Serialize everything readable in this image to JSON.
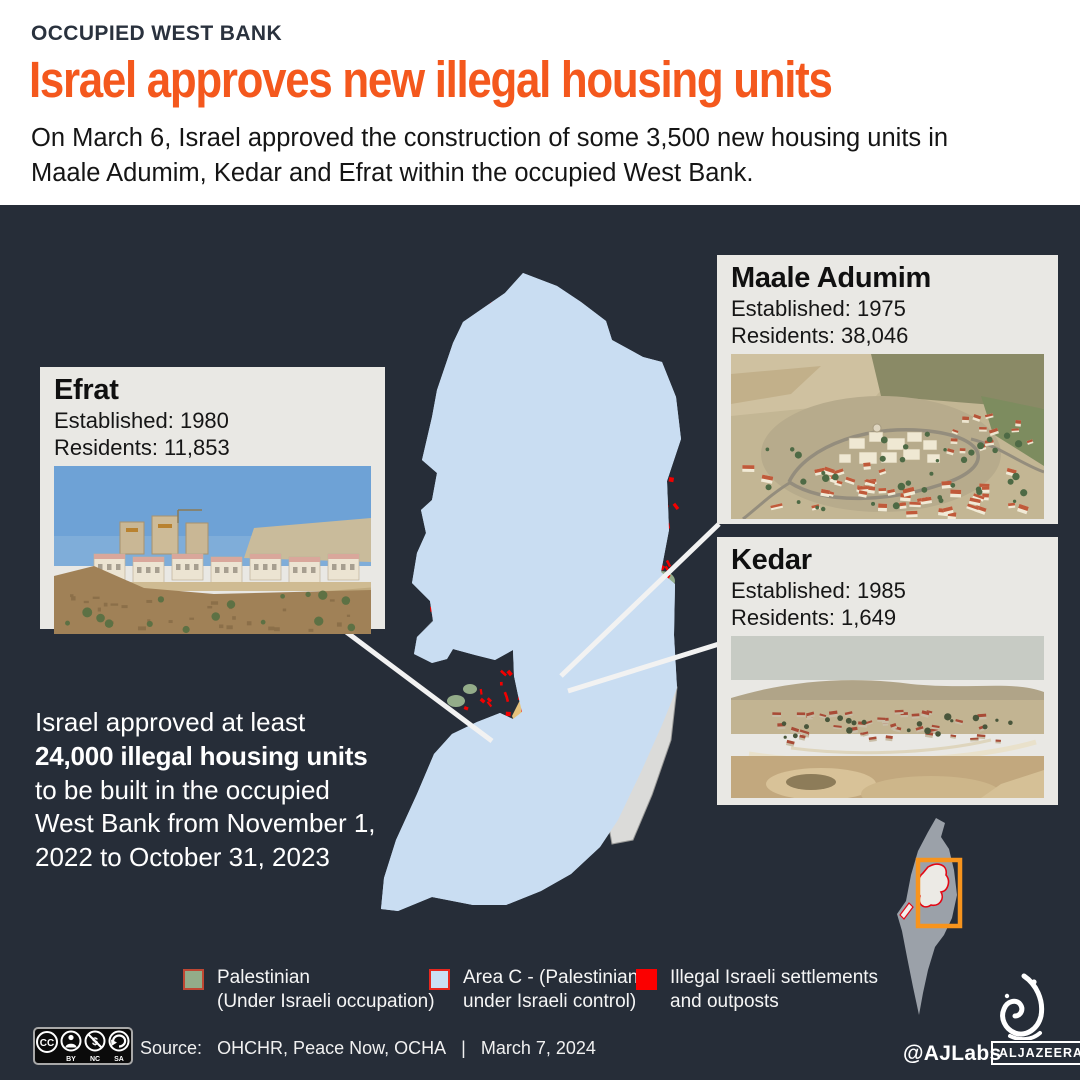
{
  "header": {
    "kicker": "OCCUPIED WEST BANK",
    "title": "Israel approves new illegal housing units",
    "subtitle_line1": "On March 6, Israel approved the construction of some 3,500 new housing units in",
    "subtitle_line2": "Maale Adumim, Kedar and Efrat within the occupied West Bank."
  },
  "settlements": {
    "efrat": {
      "name": "Efrat",
      "established": "Established: 1980",
      "residents": "Residents: 11,853"
    },
    "maale": {
      "name": "Maale Adumim",
      "established": "Established: 1975",
      "residents": "Residents: 38,046"
    },
    "kedar": {
      "name": "Kedar",
      "established": "Established: 1985",
      "residents": "Residents: 1,649"
    }
  },
  "annotation": {
    "line1": "Israel approved at least",
    "line2": "24,000 illegal housing units",
    "line3": "to be built in the occupied",
    "line4": "West Bank from November 1,",
    "line5": "2022 to October 31, 2023"
  },
  "legend": {
    "palestinian": {
      "line1": "Palestinian",
      "line2": "(Under Israeli occupation)",
      "color": "#93ac89",
      "border": "#bf4733"
    },
    "area_c": {
      "line1": "Area C - (Palestinian",
      "line2": "under Israeli control)",
      "color": "#cadff5",
      "border": "#e8271f"
    },
    "settlements": {
      "line1": "Illegal Israeli settlements",
      "line2": "and outposts",
      "color": "#fb0000",
      "border": "#fb0000"
    }
  },
  "footer": {
    "cc_labels": [
      "BY",
      "NC",
      "SA"
    ],
    "cc_symbol": "CC",
    "source_label": "Source:",
    "source_agencies": "OHCHR, Peace Now, OCHA",
    "separator": "|",
    "date": "March 7, 2024",
    "credit": "@AJLabs",
    "brand": "ALJAZEERA"
  },
  "colors": {
    "background": "#262d38",
    "header_bg": "#ffffff",
    "accent_orange": "#f4581d",
    "kicker_dark": "#2a323e",
    "area_c_fill": "#c9ddf2",
    "palestinian_fill": "#93ac89",
    "settlement_red": "#f30000",
    "outline_red": "#e90000",
    "jerusalem_tan": "#e5c27c",
    "dead_sea_gray": "#dbdbd9",
    "card_bg": "#e9e8e4",
    "leader_line": "#f2f2f2",
    "inset_box_orange": "#f7941d"
  }
}
